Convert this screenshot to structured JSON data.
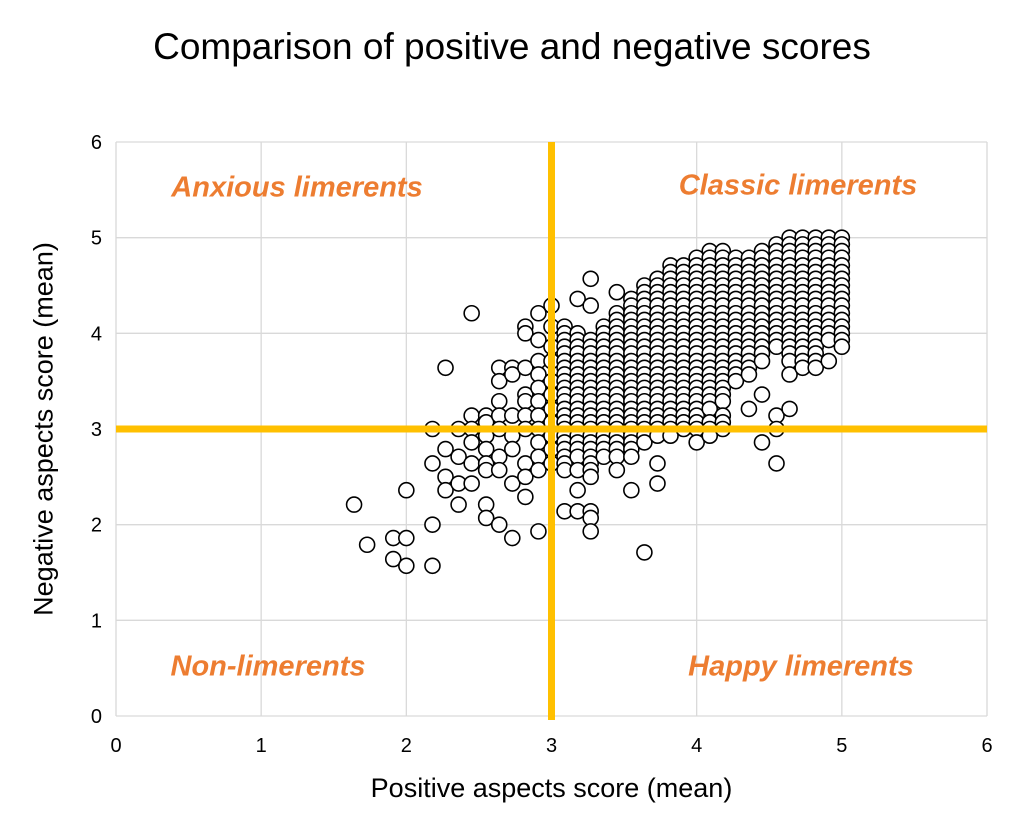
{
  "chart_data": {
    "type": "scatter",
    "title": "Comparison of positive and negative scores",
    "xlabel": "Positive aspects score (mean)",
    "ylabel": "Negative aspects score (mean)",
    "xlim": [
      0,
      6
    ],
    "ylim": [
      0,
      6
    ],
    "xticks": [
      "0",
      "1",
      "2",
      "3",
      "4",
      "5",
      "6"
    ],
    "yticks": [
      "0",
      "1",
      "2",
      "3",
      "4",
      "5",
      "6"
    ],
    "grid": true,
    "legend": "none",
    "marker": {
      "shape": "circle",
      "fill": "#FFFFFF",
      "stroke": "#000000"
    },
    "reference_lines": {
      "x": 3,
      "y": 3,
      "color": "#FFC000"
    },
    "quadrant_labels": {
      "top_left": "Anxious limerents",
      "top_right": "Classic limerents",
      "bottom_left": "Non-limerents",
      "bottom_right": "Happy limerents",
      "color": "#ED7D31"
    },
    "columns": [
      {
        "x": 1.64,
        "y": [
          2.21
        ]
      },
      {
        "x": 1.73,
        "y": [
          1.79
        ]
      },
      {
        "x": 1.91,
        "y": [
          1.86,
          1.64
        ]
      },
      {
        "x": 2.0,
        "y": [
          2.36,
          1.86,
          1.57
        ]
      },
      {
        "x": 2.18,
        "y": [
          3.0,
          2.64,
          2.0,
          1.57
        ]
      },
      {
        "x": 2.27,
        "y": [
          3.64,
          2.79,
          2.5,
          2.36
        ]
      },
      {
        "x": 2.36,
        "y": [
          3.0,
          2.71,
          2.43,
          2.21
        ]
      },
      {
        "x": 2.45,
        "y": [
          4.21,
          3.14,
          3.0,
          2.86,
          2.64,
          2.43
        ]
      },
      {
        "x": 2.55,
        "y": [
          3.14,
          3.07,
          2.93,
          2.79,
          2.64,
          2.57,
          2.21,
          2.07
        ]
      },
      {
        "x": 2.64,
        "y": [
          3.64,
          3.5,
          3.29,
          3.14,
          3.0,
          2.71,
          2.57,
          2.0
        ]
      },
      {
        "x": 2.73,
        "y": [
          3.64,
          3.57,
          3.14,
          2.93,
          2.79,
          2.43,
          1.86
        ]
      },
      {
        "x": 2.82,
        "y": [
          4.07,
          4.0,
          3.64,
          3.36,
          3.29,
          3.14,
          3.0,
          2.64,
          2.5,
          2.29
        ]
      },
      {
        "x": 2.91,
        "y": [
          4.21,
          3.93,
          3.71,
          3.57,
          3.43,
          3.29,
          3.14,
          3.0,
          2.86,
          2.71,
          2.57,
          1.93
        ]
      },
      {
        "x": 3.0,
        "y": [
          4.29,
          4.07,
          3.86,
          3.71,
          3.5,
          3.36,
          3.21,
          3.07,
          2.93,
          2.79,
          2.64
        ]
      },
      {
        "x": 3.09,
        "y": [
          4.07,
          4.0,
          3.93,
          3.86,
          3.79,
          3.71,
          3.64,
          3.57,
          3.5,
          3.43,
          3.36,
          3.29,
          3.21,
          3.14,
          3.07,
          3.0,
          2.93,
          2.86,
          2.79,
          2.71,
          2.64,
          2.57,
          2.14
        ]
      },
      {
        "x": 3.18,
        "y": [
          4.36,
          4.0,
          3.93,
          3.86,
          3.79,
          3.71,
          3.64,
          3.57,
          3.5,
          3.43,
          3.36,
          3.29,
          3.21,
          3.14,
          3.07,
          3.0,
          2.93,
          2.86,
          2.79,
          2.71,
          2.57,
          2.36,
          2.14
        ]
      },
      {
        "x": 3.27,
        "y": [
          4.57,
          4.29,
          3.93,
          3.86,
          3.79,
          3.71,
          3.64,
          3.57,
          3.5,
          3.43,
          3.36,
          3.29,
          3.21,
          3.14,
          3.07,
          3.0,
          2.93,
          2.86,
          2.79,
          2.71,
          2.64,
          2.57,
          2.5,
          2.14,
          2.07,
          1.93
        ]
      },
      {
        "x": 3.36,
        "y": [
          4.07,
          4.0,
          3.93,
          3.86,
          3.79,
          3.71,
          3.64,
          3.57,
          3.5,
          3.43,
          3.36,
          3.29,
          3.21,
          3.14,
          3.07,
          3.0,
          2.93,
          2.86,
          2.79,
          2.71
        ]
      },
      {
        "x": 3.45,
        "y": [
          4.43,
          4.21,
          4.14,
          4.07,
          4.0,
          3.93,
          3.86,
          3.79,
          3.71,
          3.64,
          3.57,
          3.5,
          3.43,
          3.36,
          3.29,
          3.21,
          3.14,
          3.07,
          3.0,
          2.93,
          2.86,
          2.79,
          2.71,
          2.57
        ]
      },
      {
        "x": 3.55,
        "y": [
          4.36,
          4.29,
          4.21,
          4.14,
          4.07,
          4.0,
          3.93,
          3.86,
          3.79,
          3.71,
          3.64,
          3.57,
          3.5,
          3.43,
          3.36,
          3.29,
          3.21,
          3.14,
          3.07,
          3.0,
          2.93,
          2.86,
          2.79,
          2.71,
          2.36
        ]
      },
      {
        "x": 3.64,
        "y": [
          4.5,
          4.43,
          4.36,
          4.29,
          4.21,
          4.14,
          4.07,
          4.0,
          3.93,
          3.86,
          3.79,
          3.71,
          3.64,
          3.57,
          3.5,
          3.43,
          3.36,
          3.29,
          3.21,
          3.14,
          3.07,
          3.0,
          2.93,
          2.86,
          1.71
        ]
      },
      {
        "x": 3.73,
        "y": [
          4.57,
          4.5,
          4.43,
          4.36,
          4.29,
          4.21,
          4.14,
          4.07,
          4.0,
          3.93,
          3.86,
          3.79,
          3.71,
          3.64,
          3.57,
          3.5,
          3.43,
          3.36,
          3.29,
          3.21,
          3.14,
          3.07,
          3.0,
          2.93,
          2.64,
          2.43
        ]
      },
      {
        "x": 3.82,
        "y": [
          4.71,
          4.64,
          4.57,
          4.5,
          4.43,
          4.36,
          4.29,
          4.21,
          4.14,
          4.07,
          4.0,
          3.93,
          3.86,
          3.79,
          3.71,
          3.64,
          3.57,
          3.5,
          3.43,
          3.36,
          3.29,
          3.21,
          3.14,
          3.07,
          3.0,
          2.93
        ]
      },
      {
        "x": 3.91,
        "y": [
          4.71,
          4.64,
          4.57,
          4.5,
          4.43,
          4.36,
          4.29,
          4.21,
          4.14,
          4.07,
          4.0,
          3.93,
          3.86,
          3.79,
          3.71,
          3.64,
          3.57,
          3.5,
          3.43,
          3.36,
          3.29,
          3.21,
          3.14,
          3.07,
          3.0
        ]
      },
      {
        "x": 4.0,
        "y": [
          4.79,
          4.71,
          4.64,
          4.57,
          4.5,
          4.43,
          4.36,
          4.29,
          4.21,
          4.14,
          4.07,
          4.0,
          3.93,
          3.86,
          3.79,
          3.71,
          3.64,
          3.57,
          3.5,
          3.43,
          3.36,
          3.29,
          3.21,
          3.14,
          3.07,
          3.0,
          2.86
        ]
      },
      {
        "x": 4.09,
        "y": [
          4.86,
          4.79,
          4.71,
          4.64,
          4.57,
          4.5,
          4.43,
          4.36,
          4.29,
          4.21,
          4.14,
          4.07,
          4.0,
          3.93,
          3.86,
          3.79,
          3.71,
          3.64,
          3.57,
          3.5,
          3.43,
          3.36,
          3.29,
          3.21,
          3.07,
          3.0,
          2.93
        ]
      },
      {
        "x": 4.18,
        "y": [
          4.86,
          4.79,
          4.71,
          4.64,
          4.57,
          4.5,
          4.43,
          4.36,
          4.29,
          4.21,
          4.14,
          4.07,
          4.0,
          3.93,
          3.86,
          3.79,
          3.71,
          3.64,
          3.57,
          3.5,
          3.43,
          3.36,
          3.29,
          3.14,
          3.07,
          3.0
        ]
      },
      {
        "x": 4.27,
        "y": [
          4.79,
          4.71,
          4.64,
          4.57,
          4.5,
          4.43,
          4.36,
          4.29,
          4.21,
          4.14,
          4.07,
          4.0,
          3.93,
          3.86,
          3.79,
          3.71,
          3.64,
          3.57,
          3.5
        ]
      },
      {
        "x": 4.36,
        "y": [
          4.79,
          4.71,
          4.64,
          4.57,
          4.5,
          4.43,
          4.36,
          4.29,
          4.21,
          4.14,
          4.07,
          4.0,
          3.93,
          3.86,
          3.79,
          3.71,
          3.64,
          3.57,
          3.21
        ]
      },
      {
        "x": 4.45,
        "y": [
          4.86,
          4.79,
          4.71,
          4.64,
          4.57,
          4.5,
          4.43,
          4.36,
          4.29,
          4.21,
          4.14,
          4.07,
          4.0,
          3.93,
          3.86,
          3.79,
          3.71,
          3.36,
          2.86
        ]
      },
      {
        "x": 4.55,
        "y": [
          4.93,
          4.86,
          4.79,
          4.71,
          4.64,
          4.57,
          4.5,
          4.43,
          4.36,
          4.29,
          4.21,
          4.14,
          4.07,
          4.0,
          3.93,
          3.86,
          3.14,
          3.0,
          2.64
        ]
      },
      {
        "x": 4.64,
        "y": [
          5.0,
          4.93,
          4.86,
          4.79,
          4.71,
          4.64,
          4.57,
          4.5,
          4.43,
          4.36,
          4.29,
          4.21,
          4.14,
          4.07,
          4.0,
          3.93,
          3.86,
          3.79,
          3.71,
          3.57,
          3.21
        ]
      },
      {
        "x": 4.73,
        "y": [
          5.0,
          4.93,
          4.86,
          4.79,
          4.71,
          4.64,
          4.57,
          4.5,
          4.43,
          4.36,
          4.29,
          4.21,
          4.14,
          4.07,
          4.0,
          3.93,
          3.86,
          3.79,
          3.71,
          3.64
        ]
      },
      {
        "x": 4.82,
        "y": [
          5.0,
          4.93,
          4.86,
          4.79,
          4.71,
          4.64,
          4.57,
          4.5,
          4.43,
          4.36,
          4.29,
          4.21,
          4.14,
          4.07,
          4.0,
          3.93,
          3.86,
          3.79,
          3.71,
          3.64
        ]
      },
      {
        "x": 4.91,
        "y": [
          5.0,
          4.93,
          4.86,
          4.79,
          4.71,
          4.64,
          4.57,
          4.5,
          4.43,
          4.36,
          4.29,
          4.21,
          4.14,
          4.07,
          4.0,
          3.93,
          3.71
        ]
      },
      {
        "x": 5.0,
        "y": [
          5.0,
          4.93,
          4.86,
          4.79,
          4.71,
          4.64,
          4.57,
          4.5,
          4.43,
          4.36,
          4.29,
          4.21,
          4.14,
          4.07,
          4.0,
          3.93,
          3.86
        ]
      }
    ]
  }
}
